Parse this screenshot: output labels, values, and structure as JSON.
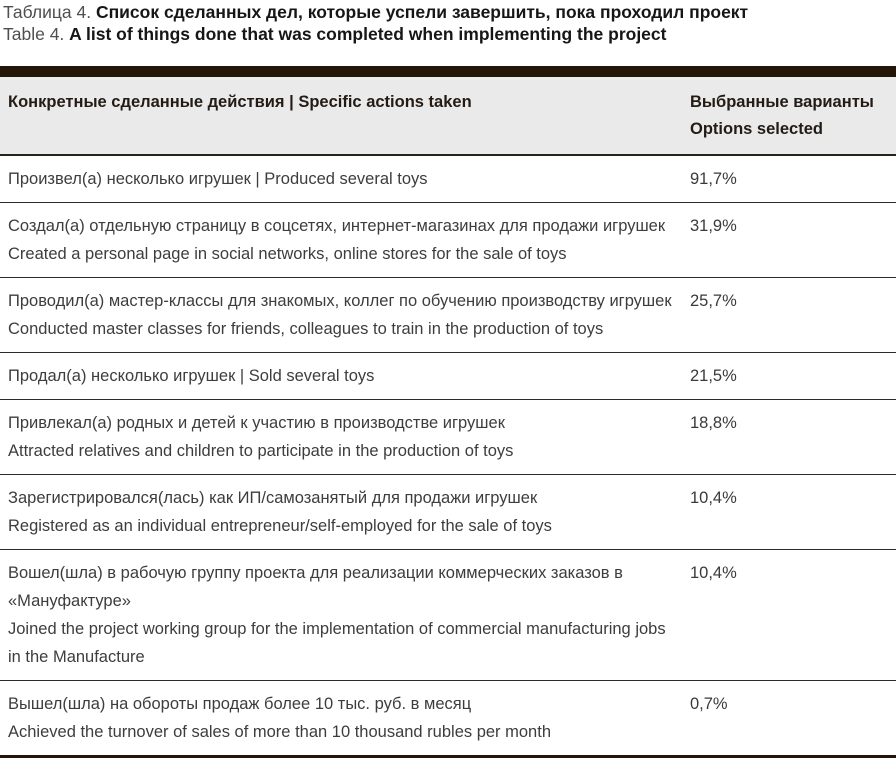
{
  "colors": {
    "accent_bar": "#241509",
    "header_background": "#eaeaea",
    "row_separator": "#2e2a27"
  },
  "caption": {
    "line1_prefix": "Таблица 4. ",
    "line1_bold": "Список сделанных дел, которые успели завершить, пока проходил проект",
    "line2_prefix": "Table 4. ",
    "line2_bold": "A list of things done that was completed when implementing the project"
  },
  "table": {
    "header": {
      "actions_col": "Конкретные сделанные действия  |  Specific actions taken",
      "value_col_line1": "Выбранные варианты",
      "value_col_line2": "Options selected"
    },
    "rows": [
      {
        "lines": [
          "Произвел(а) несколько игрушек  |  Produced several toys"
        ],
        "value": "91,7%"
      },
      {
        "lines": [
          "Создал(а) отдельную страницу в соцсетях, интернет-магазинах для продажи игрушек",
          "Created a personal page in social networks, online stores for the sale of toys"
        ],
        "value": "31,9%"
      },
      {
        "lines": [
          "Проводил(а) мастер-классы для знакомых, коллег по обучению производству игрушек",
          "Conducted master classes for friends, colleagues to train in the production of toys"
        ],
        "value": "25,7%"
      },
      {
        "lines": [
          "Продал(а) несколько игрушек  |  Sold several toys"
        ],
        "value": "21,5%"
      },
      {
        "lines": [
          "Привлекал(а) родных и детей к участию в производстве игрушек",
          "Attracted relatives and children to participate in the production of toys"
        ],
        "value": "18,8%"
      },
      {
        "lines": [
          "Зарегистрировался(лась) как ИП/самозанятый для продажи игрушек",
          "Registered as an individual entrepreneur/self-employed for the sale of toys"
        ],
        "value": "10,4%"
      },
      {
        "lines": [
          "Вошел(шла) в рабочую группу проекта для реализации коммерческих заказов в «Мануфактуре»",
          "Joined the project working group for the implementation of commercial manufacturing jobs in the Manufacture"
        ],
        "value": "10,4%"
      },
      {
        "lines": [
          "Вышел(шла) на обороты продаж более 10 тыс. руб. в месяц",
          "Achieved the turnover of sales of more than 10 thousand rubles per month"
        ],
        "value": "0,7%"
      }
    ]
  }
}
